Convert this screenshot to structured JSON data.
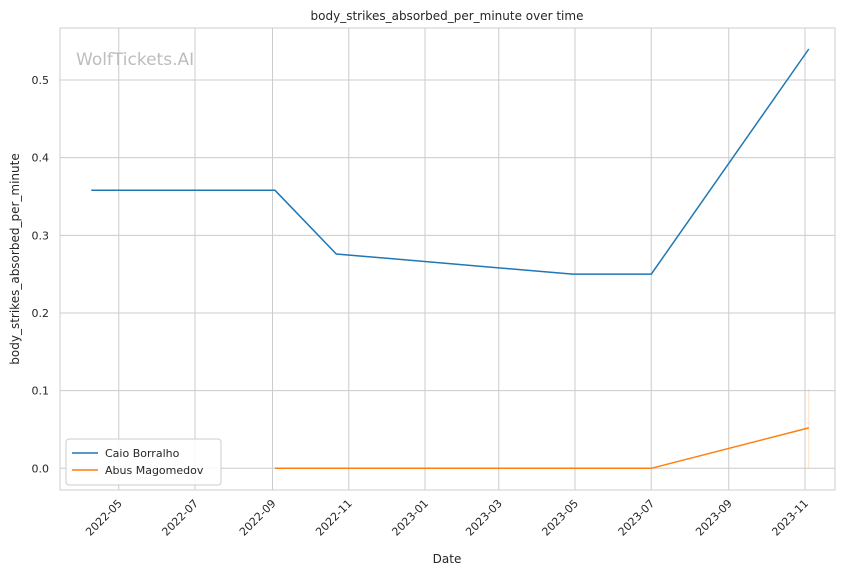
{
  "chart_data": {
    "type": "line",
    "title": "body_strikes_absorbed_per_minute over time",
    "xlabel": "Date",
    "ylabel": "body_strikes_absorbed_per_minute",
    "watermark": "WolfTickets.AI",
    "x_ticks": [
      "2022-05",
      "2022-07",
      "2022-09",
      "2022-11",
      "2023-01",
      "2023-03",
      "2023-05",
      "2023-07",
      "2023-09",
      "2023-11"
    ],
    "y_ticks": [
      "0.0",
      "0.1",
      "0.2",
      "0.3",
      "0.4",
      "0.5"
    ],
    "xlim": [
      "2022-03-15",
      "2023-11-25"
    ],
    "ylim": [
      -0.028,
      0.567
    ],
    "grid": true,
    "legend_position": "lower-left",
    "series": [
      {
        "name": "Caio Borralho",
        "color": "#1f77b4",
        "points": [
          {
            "x": "2022-04-09",
            "y": 0.358
          },
          {
            "x": "2022-09-03",
            "y": 0.358
          },
          {
            "x": "2022-10-22",
            "y": 0.276
          },
          {
            "x": "2023-04-29",
            "y": 0.25
          },
          {
            "x": "2023-07-01",
            "y": 0.25
          },
          {
            "x": "2023-11-04",
            "y": 0.54
          }
        ]
      },
      {
        "name": "Abus Magomedov",
        "color": "#ff7f0e",
        "points": [
          {
            "x": "2022-09-03",
            "y": 0.0
          },
          {
            "x": "2023-07-01",
            "y": 0.0
          },
          {
            "x": "2023-11-04",
            "y": 0.052
          }
        ]
      }
    ]
  }
}
